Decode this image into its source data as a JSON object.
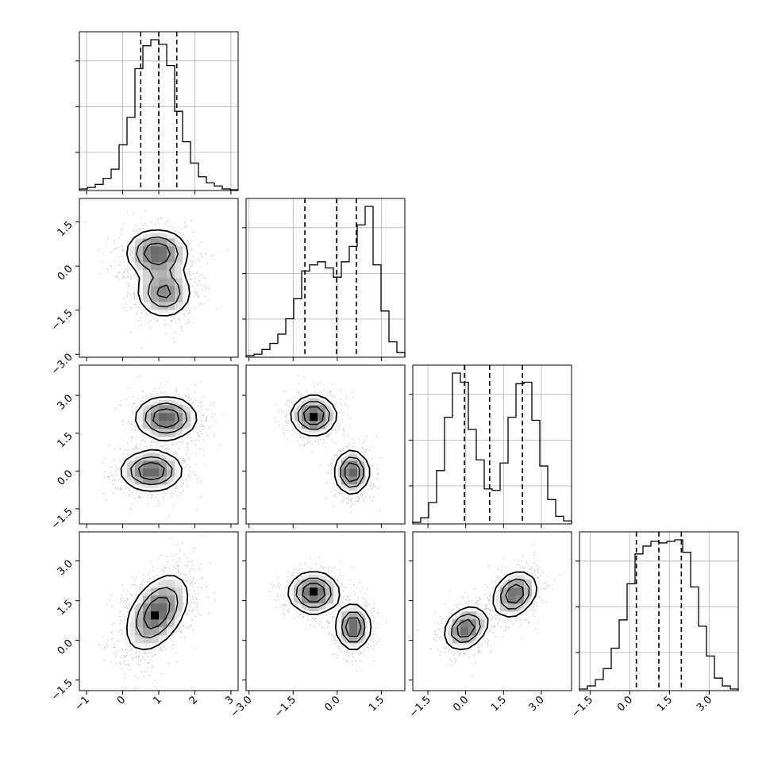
{
  "chart_data": {
    "type": "corner",
    "title": "",
    "n_params": 4,
    "params": [
      {
        "label": "",
        "range": [
          -1.2,
          3.2
        ],
        "ticks": [
          "−1",
          "0",
          "1",
          "2",
          "3"
        ],
        "tick_values": [
          -1,
          0,
          1,
          2,
          3
        ],
        "quantiles": [
          0.5,
          1.0,
          1.5
        ],
        "hist": [
          0.01,
          0.02,
          0.04,
          0.08,
          0.14,
          0.3,
          0.48,
          0.8,
          0.95,
          0.99,
          0.96,
          0.82,
          0.52,
          0.32,
          0.18,
          0.09,
          0.05,
          0.03,
          0.01,
          0.005
        ]
      },
      {
        "label": "",
        "range": [
          -3.1,
          2.3
        ],
        "ticks": [
          "−3.0",
          "−1.5",
          "0.0",
          "1.5"
        ],
        "tick_values": [
          -3.0,
          -1.5,
          0.0,
          1.5
        ],
        "quantiles": [
          -1.1,
          -0.02,
          0.65
        ],
        "hist": [
          0.01,
          0.02,
          0.05,
          0.09,
          0.15,
          0.25,
          0.38,
          0.56,
          0.6,
          0.62,
          0.58,
          0.52,
          0.62,
          0.72,
          0.86,
          0.98,
          0.6,
          0.3,
          0.1,
          0.03
        ]
      },
      {
        "label": "",
        "range": [
          -2.1,
          4.2
        ],
        "ticks": [
          "−1.5",
          "0.0",
          "1.5",
          "3.0"
        ],
        "tick_values": [
          -1.5,
          0.0,
          1.5,
          3.0
        ],
        "quantiles": [
          -0.05,
          0.95,
          2.25
        ],
        "hist": [
          0.01,
          0.04,
          0.14,
          0.35,
          0.7,
          0.99,
          0.93,
          0.62,
          0.42,
          0.23,
          0.22,
          0.4,
          0.7,
          0.92,
          0.93,
          0.68,
          0.38,
          0.16,
          0.05,
          0.02
        ]
      },
      {
        "label": "",
        "range": [
          -1.9,
          4.1
        ],
        "ticks": [
          "−1.5",
          "0.0",
          "1.5",
          "3.0"
        ],
        "tick_values": [
          -1.5,
          0.0,
          1.5,
          3.0
        ],
        "quantiles": [
          0.25,
          1.1,
          1.95
        ],
        "hist": [
          0.01,
          0.03,
          0.07,
          0.14,
          0.27,
          0.45,
          0.68,
          0.87,
          0.92,
          0.95,
          0.94,
          0.95,
          0.96,
          0.88,
          0.66,
          0.41,
          0.22,
          0.08,
          0.03,
          0.01
        ]
      }
    ],
    "pairs": [
      {
        "x": 0,
        "y": 1,
        "modes": [
          {
            "cx": 0.95,
            "cy": 0.45,
            "sx": 0.45,
            "sy": 0.42,
            "rho": 0.0,
            "w": 0.55
          },
          {
            "cx": 1.15,
            "cy": -0.9,
            "sx": 0.4,
            "sy": 0.45,
            "rho": 0.0,
            "w": 0.45
          }
        ]
      },
      {
        "x": 0,
        "y": 2,
        "modes": [
          {
            "cx": 1.2,
            "cy": 2.1,
            "sx": 0.45,
            "sy": 0.45,
            "rho": 0.0,
            "w": 0.5
          },
          {
            "cx": 0.8,
            "cy": 0.0,
            "sx": 0.45,
            "sy": 0.42,
            "rho": 0.0,
            "w": 0.5
          }
        ]
      },
      {
        "x": 0,
        "y": 3,
        "modes": [
          {
            "cx": 0.95,
            "cy": 1.05,
            "sx": 0.45,
            "sy": 0.75,
            "rho": 0.45,
            "w": 1.0
          }
        ]
      },
      {
        "x": 1,
        "y": 2,
        "modes": [
          {
            "cx": -0.8,
            "cy": 2.2,
            "sx": 0.4,
            "sy": 0.42,
            "rho": 0.0,
            "w": 0.5
          },
          {
            "cx": 0.5,
            "cy": -0.05,
            "sx": 0.3,
            "sy": 0.45,
            "rho": 0.0,
            "w": 0.5
          }
        ]
      },
      {
        "x": 1,
        "y": 3,
        "modes": [
          {
            "cx": -0.8,
            "cy": 1.8,
            "sx": 0.45,
            "sy": 0.42,
            "rho": 0.0,
            "w": 0.5
          },
          {
            "cx": 0.55,
            "cy": 0.5,
            "sx": 0.3,
            "sy": 0.45,
            "rho": 0.0,
            "w": 0.5
          }
        ]
      },
      {
        "x": 2,
        "y": 3,
        "modes": [
          {
            "cx": 0.0,
            "cy": 0.45,
            "sx": 0.45,
            "sy": 0.42,
            "rho": 0.25,
            "w": 0.5
          },
          {
            "cx": 1.95,
            "cy": 1.75,
            "sx": 0.45,
            "sy": 0.45,
            "rho": 0.25,
            "w": 0.5
          }
        ]
      }
    ]
  }
}
